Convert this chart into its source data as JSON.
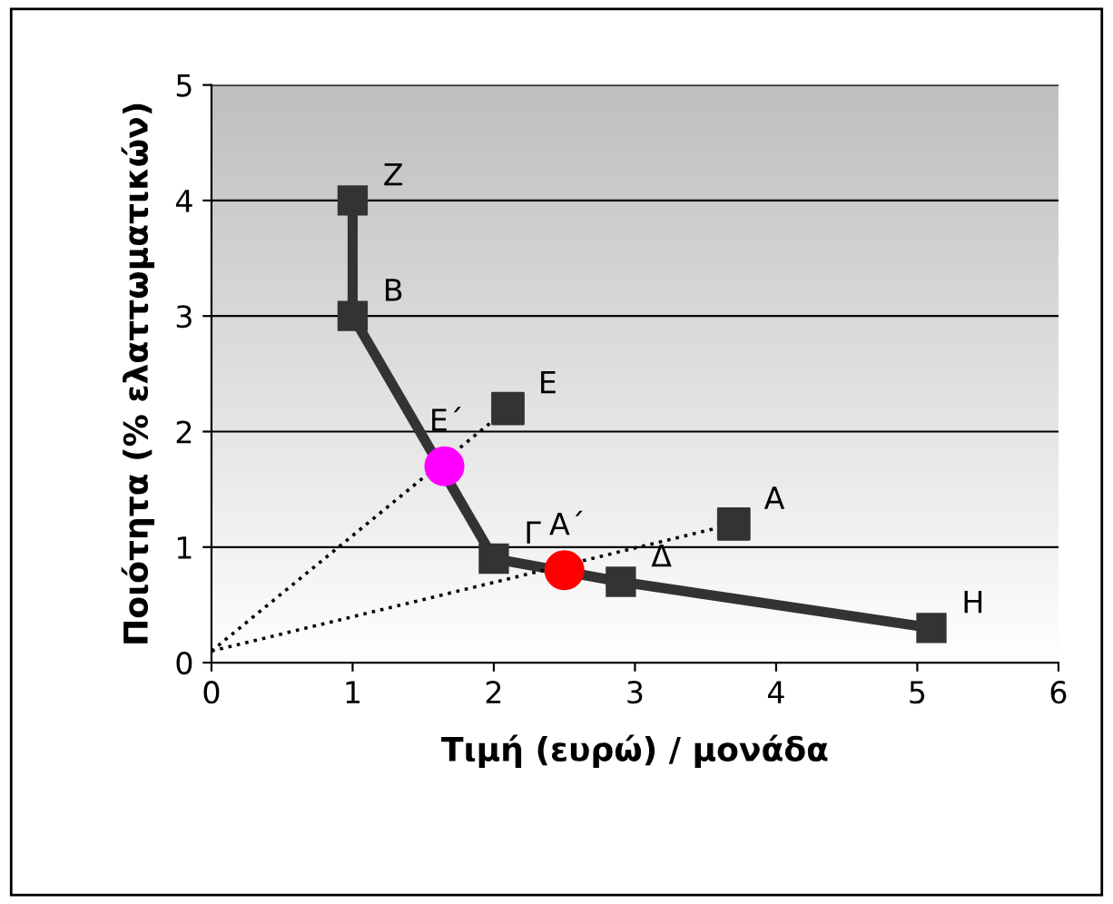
{
  "chart_data": {
    "type": "line",
    "xlabel": "Τιμή (ευρώ) / μονάδα",
    "ylabel": "Ποιότητα (% ελαττωματικών)",
    "xlim": [
      0,
      6
    ],
    "ylim": [
      0,
      5
    ],
    "xticks": [
      0,
      1,
      2,
      3,
      4,
      5,
      6
    ],
    "yticks": [
      0,
      1,
      2,
      3,
      4,
      5
    ],
    "grid": "y",
    "legend": false,
    "series": [
      {
        "color": "#333333",
        "marker": "square",
        "line_style": "solid",
        "x": [
          1,
          1,
          2,
          2.9,
          5.1
        ],
        "values": [
          4,
          3,
          0.9,
          0.7,
          0.3
        ],
        "value_labels": [
          "Z",
          "B",
          "Γ",
          "Δ",
          "H"
        ]
      },
      {
        "type": "line",
        "color": "#000000",
        "marker": "none",
        "line_style": "dotted",
        "x": [
          0,
          2.1
        ],
        "values": [
          0.1,
          2.2
        ]
      },
      {
        "type": "line",
        "color": "#000000",
        "marker": "none",
        "line_style": "dotted",
        "x": [
          0,
          3.7
        ],
        "values": [
          0.1,
          1.2
        ]
      },
      {
        "type": "scatter",
        "color": "#333333",
        "marker": "square",
        "x": [
          2.1,
          3.7
        ],
        "values": [
          2.2,
          1.2
        ],
        "value_labels": [
          "E",
          "A"
        ]
      },
      {
        "type": "scatter",
        "colors": [
          "#ff00ff",
          "#ff0000"
        ],
        "marker": "circle",
        "x": [
          1.65,
          2.5
        ],
        "values": [
          1.7,
          0.8
        ],
        "value_labels": [
          "E΄",
          "A΄"
        ]
      }
    ]
  }
}
